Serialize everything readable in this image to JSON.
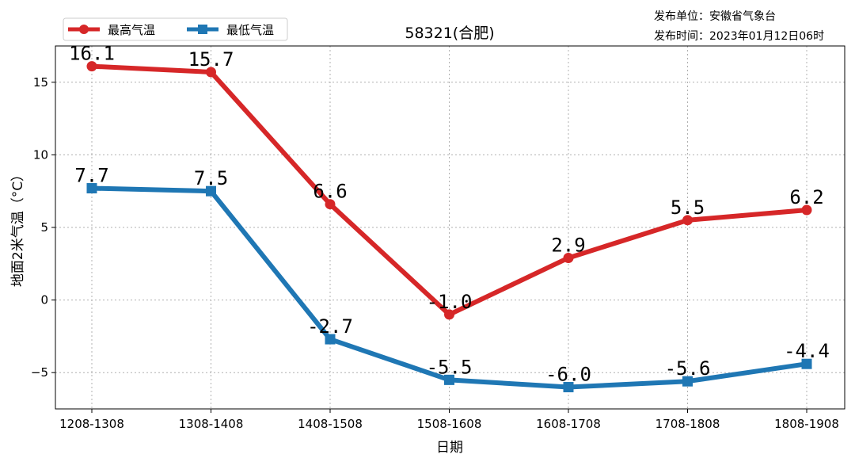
{
  "publisher_unit": "发布单位：安徽省气象台",
  "publish_time": "发布时间：2023年01月12日06时",
  "chart_data": {
    "type": "line",
    "title": "58321(合肥)",
    "xlabel": "日期",
    "ylabel": "地面2米气温（°C）",
    "categories": [
      "1208-1308",
      "1308-1408",
      "1408-1508",
      "1508-1608",
      "1608-1708",
      "1708-1808",
      "1808-1908"
    ],
    "ylim": [
      -7.5,
      17.5
    ],
    "yticks": [
      -5,
      0,
      5,
      10,
      15
    ],
    "grid": true,
    "legend_position": "top-left",
    "series": [
      {
        "name": "最高气温",
        "color": "#d62728",
        "marker": "circle",
        "values": [
          16.1,
          15.7,
          6.6,
          -1.0,
          2.9,
          5.5,
          6.2
        ],
        "labels": [
          "16.1",
          "15.7",
          "6.6",
          "-1.0",
          "2.9",
          "5.5",
          "6.2"
        ]
      },
      {
        "name": "最低气温",
        "color": "#1f77b4",
        "marker": "square",
        "values": [
          7.7,
          7.5,
          -2.7,
          -5.5,
          -6.0,
          -5.6,
          -4.4
        ],
        "labels": [
          "7.7",
          "7.5",
          "-2.7",
          "-5.5",
          "-6.0",
          "-5.6",
          "-4.4"
        ]
      }
    ]
  }
}
